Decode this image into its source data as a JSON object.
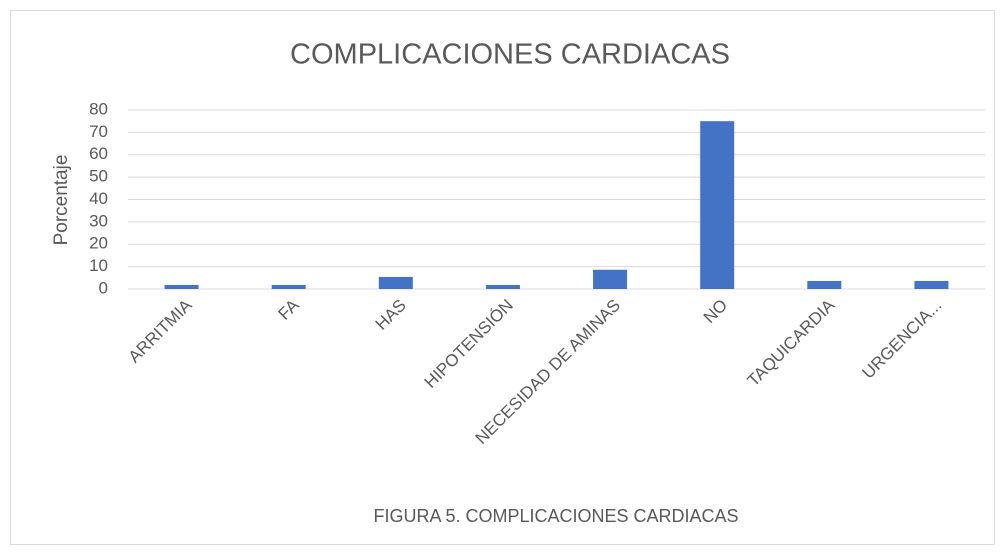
{
  "chart_data": {
    "type": "bar",
    "title": "COMPLICACIONES CARDIACAS",
    "y_label": "Porcentaje",
    "x_label": "FIGURA 5. COMPLICACIONES CARDIACAS",
    "categories": [
      "ARRITMIA",
      "FA",
      "HAS",
      "HIPOTENSIÓN",
      "NECESIDAD DE AMINAS",
      "NO",
      "TAQUICARDIA",
      "URGENCIA..."
    ],
    "values": [
      1.8,
      1.8,
      5.4,
      1.8,
      8.6,
      75,
      3.6,
      3.6
    ],
    "color": "#4472c4",
    "ylim": [
      0,
      80
    ],
    "yticks": [
      0,
      10,
      20,
      30,
      40,
      50,
      60,
      70,
      80
    ],
    "grid": true
  }
}
